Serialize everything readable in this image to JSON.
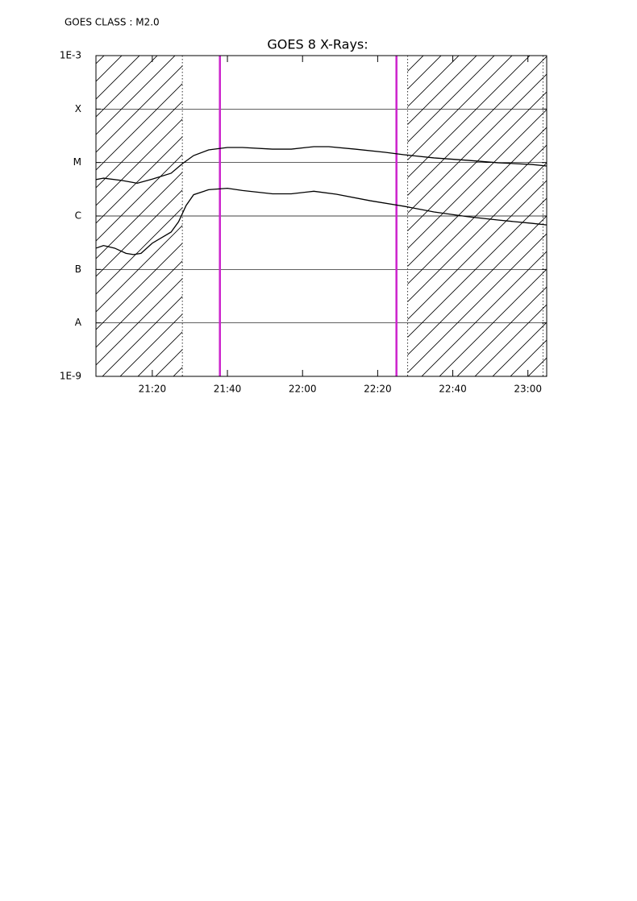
{
  "chart_data": {
    "type": "line",
    "annotation": "GOES CLASS : M2.0",
    "title": "GOES 8 X-Rays:",
    "log_y": true,
    "grid": true,
    "xlim": [
      1265,
      1385
    ],
    "xticks": [
      {
        "value": 1280,
        "label": "21:20"
      },
      {
        "value": 1300,
        "label": "21:40"
      },
      {
        "value": 1320,
        "label": "22:00"
      },
      {
        "value": 1340,
        "label": "22:20"
      },
      {
        "value": 1360,
        "label": "22:40"
      },
      {
        "value": 1380,
        "label": "23:00"
      }
    ],
    "ylim": [
      1e-09,
      0.001
    ],
    "yticks": [
      {
        "value": 1e-09,
        "label": "1E-9"
      },
      {
        "value": 1e-08,
        "label": "A"
      },
      {
        "value": 1e-07,
        "label": "B"
      },
      {
        "value": 1e-06,
        "label": "C"
      },
      {
        "value": 1e-05,
        "label": "M"
      },
      {
        "value": 0.0001,
        "label": "X"
      },
      {
        "value": 0.001,
        "label": "1E-3"
      }
    ],
    "shaded_regions": [
      [
        1265,
        1288
      ],
      [
        1348,
        1385
      ]
    ],
    "dotted_lines": [
      1288,
      1348,
      1384
    ],
    "marker_lines": [
      1298,
      1345
    ],
    "marker_color": "#cc22cc",
    "series": [
      {
        "color": "#000000",
        "x": [
          1265,
          1267,
          1272,
          1276,
          1280,
          1285,
          1288,
          1291,
          1295,
          1300,
          1304,
          1312,
          1317,
          1323,
          1327,
          1334,
          1342,
          1347,
          1355,
          1364,
          1372,
          1381,
          1385
        ],
        "values": [
          4.8e-06,
          5.1e-06,
          4.6e-06,
          4.1e-06,
          4.9e-06,
          6.3e-06,
          9.5e-06,
          1.35e-05,
          1.72e-05,
          1.91e-05,
          1.91e-05,
          1.78e-05,
          1.78e-05,
          1.98e-05,
          1.98e-05,
          1.78e-05,
          1.55e-05,
          1.4e-05,
          1.22e-05,
          1.1e-05,
          9.9e-06,
          9.2e-06,
          8.6e-06
        ]
      },
      {
        "color": "#000000",
        "x": [
          1265,
          1267,
          1270,
          1273,
          1275,
          1277,
          1280,
          1285,
          1287,
          1289,
          1291,
          1295,
          1300,
          1304,
          1312,
          1317,
          1323,
          1329,
          1338,
          1347,
          1355,
          1364,
          1372,
          1381,
          1385
        ],
        "values": [
          2.5e-07,
          2.8e-07,
          2.5e-07,
          2e-07,
          1.9e-07,
          2e-07,
          3.1e-07,
          5e-07,
          7.8e-07,
          1.57e-06,
          2.5e-06,
          3.1e-06,
          3.3e-06,
          3e-06,
          2.6e-06,
          2.6e-06,
          2.9e-06,
          2.55e-06,
          1.93e-06,
          1.52e-06,
          1.19e-06,
          9.7e-07,
          8.4e-07,
          7.3e-07,
          6.8e-07
        ]
      }
    ]
  }
}
